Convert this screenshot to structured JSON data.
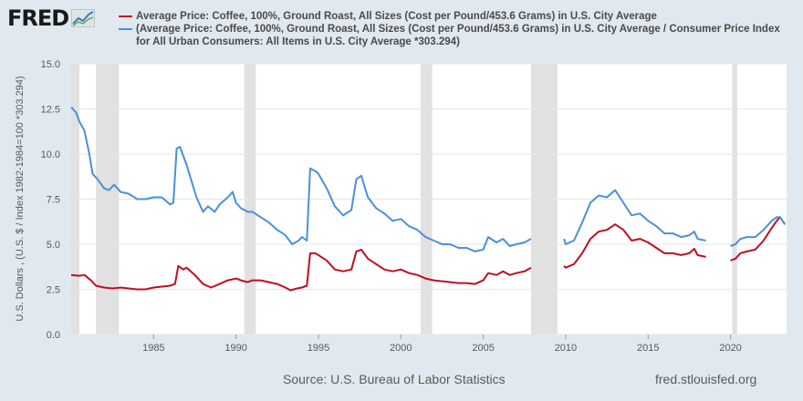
{
  "header": {
    "logo_text": "FRED"
  },
  "legend": [
    {
      "label": "Average Price: Coffee, 100%, Ground Roast, All Sizes (Cost per Pound/453.6 Grams) in U.S. City Average",
      "color": "#c10d22"
    },
    {
      "label": "(Average Price: Coffee, 100%, Ground Roast, All Sizes (Cost per Pound/453.6 Grams) in U.S. City Average / Consumer Price Index for All Urban Consumers: All Items in U.S. City Average *303.294)",
      "color": "#4a90d9"
    }
  ],
  "footer": {
    "source": "Source: U.S. Bureau of Labor Statistics",
    "site": "fred.stlouisfed.org"
  },
  "chart_data": {
    "type": "line",
    "ylabel": "U.S. Dollars , (U.S. $ / Index 1982-1984=100 *303.294)",
    "xlim": [
      1980.0,
      2023.4
    ],
    "ylim": [
      0,
      15
    ],
    "y_ticks": [
      "0.0",
      "2.5",
      "5.0",
      "7.5",
      "10.0",
      "12.5",
      "15.0"
    ],
    "x_ticks": [
      "1985",
      "1990",
      "1995",
      "2000",
      "2005",
      "2010",
      "2015",
      "2020"
    ],
    "grid": true,
    "recessions": [
      [
        1980.0,
        1980.5
      ],
      [
        1981.5,
        1982.9
      ],
      [
        1990.5,
        1991.2
      ],
      [
        2001.2,
        2001.9
      ],
      [
        2007.9,
        2009.5
      ],
      [
        2020.1,
        2020.4
      ]
    ],
    "series": [
      {
        "name": "Average Price: Coffee, 100%, Ground Roast, All Sizes (Cost per Pound/453.6 Grams) in U.S. City Average",
        "color": "#c10d22",
        "segments": [
          [
            [
              1980.0,
              3.3
            ],
            [
              1980.5,
              3.25
            ],
            [
              1980.8,
              3.3
            ],
            [
              1981.2,
              3.0
            ],
            [
              1981.5,
              2.7
            ],
            [
              1982.0,
              2.6
            ],
            [
              1982.5,
              2.55
            ],
            [
              1983.0,
              2.6
            ],
            [
              1983.5,
              2.55
            ],
            [
              1984.0,
              2.5
            ],
            [
              1984.5,
              2.5
            ],
            [
              1985.0,
              2.6
            ],
            [
              1985.5,
              2.65
            ],
            [
              1986.0,
              2.7
            ],
            [
              1986.3,
              2.8
            ],
            [
              1986.5,
              3.8
            ],
            [
              1986.8,
              3.6
            ],
            [
              1987.0,
              3.7
            ],
            [
              1987.5,
              3.3
            ],
            [
              1988.0,
              2.8
            ],
            [
              1988.5,
              2.6
            ],
            [
              1989.0,
              2.8
            ],
            [
              1989.5,
              3.0
            ],
            [
              1990.0,
              3.1
            ],
            [
              1990.3,
              3.0
            ],
            [
              1990.7,
              2.9
            ],
            [
              1991.0,
              3.0
            ],
            [
              1991.5,
              3.0
            ],
            [
              1992.0,
              2.9
            ],
            [
              1992.5,
              2.8
            ],
            [
              1993.0,
              2.6
            ],
            [
              1993.3,
              2.45
            ],
            [
              1993.7,
              2.55
            ],
            [
              1994.0,
              2.6
            ],
            [
              1994.3,
              2.7
            ],
            [
              1994.5,
              4.5
            ],
            [
              1994.8,
              4.5
            ],
            [
              1995.0,
              4.4
            ],
            [
              1995.5,
              4.1
            ],
            [
              1996.0,
              3.6
            ],
            [
              1996.5,
              3.5
            ],
            [
              1997.0,
              3.6
            ],
            [
              1997.3,
              4.6
            ],
            [
              1997.6,
              4.7
            ],
            [
              1998.0,
              4.2
            ],
            [
              1998.5,
              3.9
            ],
            [
              1999.0,
              3.6
            ],
            [
              1999.5,
              3.5
            ],
            [
              2000.0,
              3.6
            ],
            [
              2000.5,
              3.4
            ],
            [
              2001.0,
              3.3
            ],
            [
              2001.5,
              3.1
            ],
            [
              2002.0,
              3.0
            ],
            [
              2002.5,
              2.95
            ],
            [
              2003.0,
              2.9
            ],
            [
              2003.5,
              2.85
            ],
            [
              2004.0,
              2.85
            ],
            [
              2004.5,
              2.8
            ],
            [
              2005.0,
              3.0
            ],
            [
              2005.3,
              3.4
            ],
            [
              2005.8,
              3.3
            ],
            [
              2006.2,
              3.5
            ],
            [
              2006.6,
              3.3
            ],
            [
              2007.0,
              3.4
            ],
            [
              2007.5,
              3.5
            ],
            [
              2007.9,
              3.7
            ]
          ],
          [
            [
              2009.9,
              3.8
            ],
            [
              2010.0,
              3.7
            ],
            [
              2010.5,
              3.9
            ],
            [
              2011.0,
              4.5
            ],
            [
              2011.5,
              5.3
            ],
            [
              2012.0,
              5.7
            ],
            [
              2012.5,
              5.8
            ],
            [
              2013.0,
              6.1
            ],
            [
              2013.5,
              5.8
            ],
            [
              2014.0,
              5.2
            ],
            [
              2014.5,
              5.3
            ],
            [
              2015.0,
              5.1
            ],
            [
              2015.5,
              4.8
            ],
            [
              2016.0,
              4.5
            ],
            [
              2016.5,
              4.5
            ],
            [
              2017.0,
              4.4
            ],
            [
              2017.5,
              4.5
            ],
            [
              2017.8,
              4.75
            ],
            [
              2018.0,
              4.4
            ],
            [
              2018.5,
              4.3
            ]
          ],
          [
            [
              2020.0,
              4.1
            ],
            [
              2020.3,
              4.2
            ],
            [
              2020.6,
              4.5
            ],
            [
              2021.0,
              4.6
            ],
            [
              2021.5,
              4.7
            ],
            [
              2022.0,
              5.2
            ],
            [
              2022.5,
              5.9
            ],
            [
              2022.8,
              6.3
            ],
            [
              2023.0,
              6.5
            ],
            [
              2023.3,
              6.1
            ]
          ]
        ]
      },
      {
        "name": "(Average Price: Coffee, 100%, Ground Roast, All Sizes (Cost per Pound/453.6 Grams) in U.S. City Average / Consumer Price Index for All Urban Consumers: All Items in U.S. City Average *303.294)",
        "color": "#4a90d9",
        "segments": [
          [
            [
              1980.0,
              12.6
            ],
            [
              1980.3,
              12.3
            ],
            [
              1980.5,
              11.8
            ],
            [
              1980.8,
              11.3
            ],
            [
              1981.1,
              10.0
            ],
            [
              1981.3,
              8.9
            ],
            [
              1981.6,
              8.6
            ],
            [
              1982.0,
              8.1
            ],
            [
              1982.3,
              8.0
            ],
            [
              1982.6,
              8.3
            ],
            [
              1983.0,
              7.9
            ],
            [
              1983.5,
              7.8
            ],
            [
              1984.0,
              7.5
            ],
            [
              1984.5,
              7.5
            ],
            [
              1985.0,
              7.6
            ],
            [
              1985.5,
              7.6
            ],
            [
              1986.0,
              7.2
            ],
            [
              1986.2,
              7.3
            ],
            [
              1986.4,
              10.3
            ],
            [
              1986.6,
              10.4
            ],
            [
              1987.0,
              9.4
            ],
            [
              1987.3,
              8.5
            ],
            [
              1987.6,
              7.6
            ],
            [
              1988.0,
              6.8
            ],
            [
              1988.3,
              7.1
            ],
            [
              1988.7,
              6.8
            ],
            [
              1989.0,
              7.2
            ],
            [
              1989.5,
              7.6
            ],
            [
              1989.8,
              7.9
            ],
            [
              1990.0,
              7.3
            ],
            [
              1990.3,
              7.0
            ],
            [
              1990.7,
              6.8
            ],
            [
              1991.0,
              6.8
            ],
            [
              1991.5,
              6.5
            ],
            [
              1992.0,
              6.2
            ],
            [
              1992.5,
              5.8
            ],
            [
              1993.0,
              5.5
            ],
            [
              1993.4,
              5.0
            ],
            [
              1993.8,
              5.2
            ],
            [
              1994.0,
              5.4
            ],
            [
              1994.3,
              5.2
            ],
            [
              1994.5,
              9.2
            ],
            [
              1994.9,
              9.0
            ],
            [
              1995.0,
              8.9
            ],
            [
              1995.5,
              8.1
            ],
            [
              1996.0,
              7.1
            ],
            [
              1996.5,
              6.6
            ],
            [
              1997.0,
              6.9
            ],
            [
              1997.3,
              8.6
            ],
            [
              1997.6,
              8.8
            ],
            [
              1998.0,
              7.6
            ],
            [
              1998.5,
              7.0
            ],
            [
              1999.0,
              6.7
            ],
            [
              1999.5,
              6.3
            ],
            [
              2000.0,
              6.4
            ],
            [
              2000.5,
              6.0
            ],
            [
              2001.0,
              5.8
            ],
            [
              2001.5,
              5.4
            ],
            [
              2002.0,
              5.2
            ],
            [
              2002.5,
              5.0
            ],
            [
              2003.0,
              5.0
            ],
            [
              2003.5,
              4.8
            ],
            [
              2004.0,
              4.8
            ],
            [
              2004.5,
              4.6
            ],
            [
              2005.0,
              4.7
            ],
            [
              2005.3,
              5.4
            ],
            [
              2005.8,
              5.1
            ],
            [
              2006.2,
              5.3
            ],
            [
              2006.6,
              4.9
            ],
            [
              2007.0,
              5.0
            ],
            [
              2007.5,
              5.1
            ],
            [
              2007.9,
              5.3
            ]
          ],
          [
            [
              2009.9,
              5.3
            ],
            [
              2010.0,
              5.0
            ],
            [
              2010.5,
              5.2
            ],
            [
              2011.0,
              6.2
            ],
            [
              2011.5,
              7.3
            ],
            [
              2012.0,
              7.7
            ],
            [
              2012.5,
              7.6
            ],
            [
              2013.0,
              8.0
            ],
            [
              2013.5,
              7.3
            ],
            [
              2014.0,
              6.6
            ],
            [
              2014.5,
              6.7
            ],
            [
              2015.0,
              6.3
            ],
            [
              2015.5,
              6.0
            ],
            [
              2016.0,
              5.6
            ],
            [
              2016.5,
              5.6
            ],
            [
              2017.0,
              5.4
            ],
            [
              2017.5,
              5.5
            ],
            [
              2017.8,
              5.7
            ],
            [
              2018.0,
              5.3
            ],
            [
              2018.5,
              5.2
            ]
          ],
          [
            [
              2020.0,
              4.9
            ],
            [
              2020.3,
              5.0
            ],
            [
              2020.6,
              5.3
            ],
            [
              2021.0,
              5.4
            ],
            [
              2021.5,
              5.4
            ],
            [
              2022.0,
              5.8
            ],
            [
              2022.5,
              6.3
            ],
            [
              2022.8,
              6.5
            ],
            [
              2023.0,
              6.5
            ],
            [
              2023.3,
              6.1
            ]
          ]
        ]
      }
    ]
  }
}
